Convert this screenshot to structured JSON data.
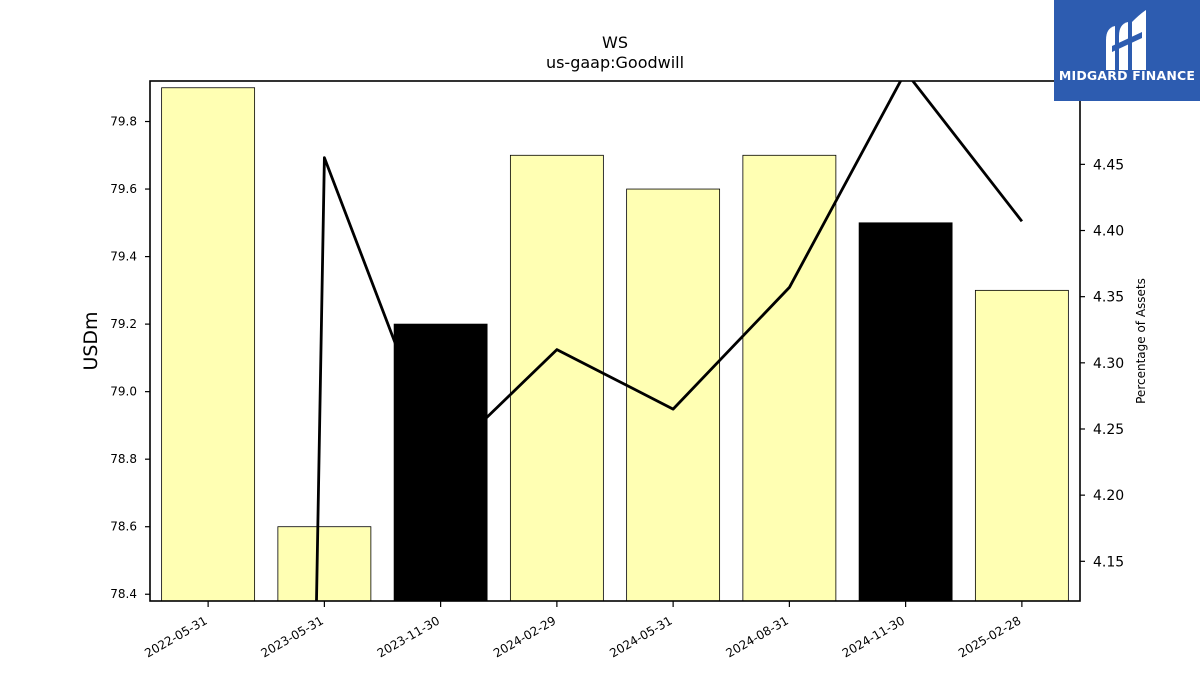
{
  "brand": {
    "name": "MIDGARD FINANCE",
    "logo_icon": "midgard-m-logo-icon",
    "background": "#2d5cb0"
  },
  "chart_data": {
    "type": "bar",
    "title": "WS",
    "subtitle": "us-gaap:Goodwill",
    "categories": [
      "2022-05-31",
      "2023-05-31",
      "2023-11-30",
      "2024-02-29",
      "2024-05-31",
      "2024-08-31",
      "2024-11-30",
      "2025-02-28"
    ],
    "series": [
      {
        "axis": "left",
        "type": "bar",
        "values": [
          79.9,
          78.6,
          79.2,
          79.7,
          79.6,
          79.7,
          79.5,
          79.3
        ],
        "colors": [
          "#ffffb3",
          "#ffffb3",
          "#000000",
          "#ffffb3",
          "#ffffb3",
          "#ffffb3",
          "#000000",
          "#ffffb3"
        ]
      },
      {
        "axis": "right",
        "type": "line",
        "color": "#000000",
        "values": [
          null,
          4.455,
          4.225,
          4.31,
          4.265,
          4.357,
          4.52,
          4.407
        ]
      }
    ],
    "ylabel": "USDm",
    "y2label": "Percentage of Assets",
    "ylim": [
      78.38,
      79.92
    ],
    "y2lim": [
      4.12,
      4.513
    ],
    "yticks": [
      "78.4",
      "78.6",
      "78.8",
      "79.0",
      "79.2",
      "79.4",
      "79.6",
      "79.8"
    ],
    "y2ticks": [
      "4.15",
      "4.20",
      "4.25",
      "4.30",
      "4.35",
      "4.40",
      "4.45"
    ],
    "grid": false
  }
}
